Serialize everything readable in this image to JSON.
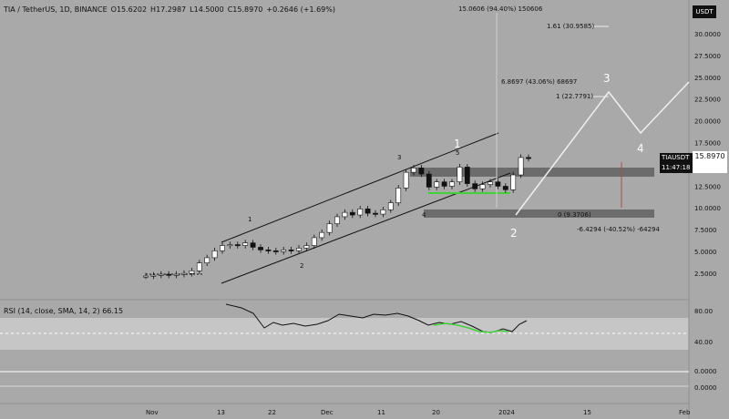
{
  "header": {
    "symbol": "TIA / TetherUS, 1D, BINANCE",
    "open": "O15.6202",
    "high": "H17.2987",
    "low": "L14.5000",
    "close": "C15.8970",
    "change": "+0.2646 (+1.69%)"
  },
  "rsi": {
    "label": "RSI (14, close, SMA, 14, 2)",
    "value": "66.15"
  },
  "currency_badge": "USDT",
  "symbol_badge": {
    "ticker": "TIAUSDT",
    "countdown": "11:47:18"
  },
  "last_price": "15.8970",
  "colors": {
    "background": "#a9a9a9",
    "candle_up": "#ffffff",
    "candle_down": "#111111",
    "channel": "#111111",
    "support": "#5c5c5c",
    "rsi_band": "#c6c6c6",
    "rsi_line": "#111111",
    "rsi_green": "#43d13a",
    "green_line": "#43d13a"
  },
  "annotations": {
    "fib_top": "15.0606 (94.40%) 150606",
    "fib_161": "1.61 (30.9585)",
    "fib_1": "1 (22.7791)",
    "fib_0": "0 (9.3706)",
    "measure_up": "6.8697 (43.06%) 68697",
    "measure_down": "-6.4294 (-40.52%) -64294"
  },
  "wave_labels": [
    {
      "label": "1",
      "x_date": "13"
    },
    {
      "label": "2",
      "x_date": "22"
    },
    {
      "label": "3",
      "x_date": "11"
    },
    {
      "label": "4",
      "x_date": "11"
    },
    {
      "label": "5",
      "x_date": "20"
    },
    {
      "label": "1",
      "x_date": "20"
    },
    {
      "label": "2",
      "x_date": "2024"
    },
    {
      "label": "3",
      "x_date": "15"
    },
    {
      "label": "4",
      "x_date": "2024"
    }
  ],
  "chart_data": {
    "type": "line",
    "y_axis_ticks": [
      "30.0000",
      "27.5000",
      "25.0000",
      "22.5000",
      "20.0000",
      "17.5000",
      "15.0000",
      "12.5000",
      "10.0000",
      "7.5000",
      "5.0000",
      "2.5000"
    ],
    "rsi_ticks": [
      "80.00",
      "40.00",
      "0.0000",
      "0.0000"
    ],
    "x_axis_ticks": [
      "Nov",
      "13",
      "22",
      "Dec",
      "11",
      "20",
      "2024",
      "15",
      "Feb"
    ],
    "ylim": [
      0,
      34
    ],
    "series": [
      {
        "values": [
          2.4,
          2.5,
          2.6,
          2.5,
          2.6,
          2.7,
          3.0,
          3.9,
          4.5,
          5.3,
          5.9,
          6.0,
          5.9,
          6.2,
          5.7,
          5.4,
          5.3,
          5.2,
          5.4,
          5.3,
          5.6,
          5.9,
          6.8,
          7.4,
          8.4,
          9.2,
          9.7,
          9.4,
          10.1,
          9.6,
          9.5,
          10.0,
          10.8,
          12.5,
          14.3,
          14.8,
          14.1,
          12.6,
          13.2,
          12.7,
          13.2,
          14.9,
          13.0,
          12.4,
          12.9,
          13.2,
          12.7,
          12.3,
          14.0,
          16.0,
          15.9
        ]
      }
    ]
  }
}
